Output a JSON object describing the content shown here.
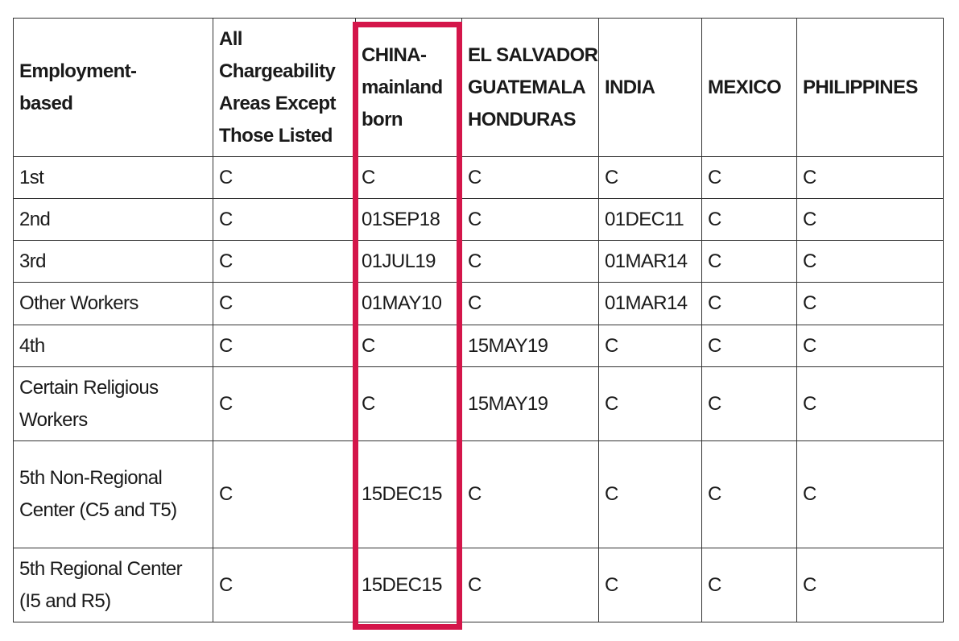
{
  "highlight_color": "#d4164a",
  "table": {
    "headers": [
      "Employment-based",
      "All Chargeability Areas Except Those Listed",
      "CHINA-mainland born",
      "EL SALVADOR GUATEMALA HONDURAS",
      "INDIA",
      "MEXICO",
      "PHILIPPINES"
    ],
    "rows": [
      [
        "1st",
        "C",
        "C",
        "C",
        "C",
        "C",
        "C"
      ],
      [
        "2nd",
        "C",
        "01SEP18",
        "C",
        "01DEC11",
        "C",
        "C"
      ],
      [
        "3rd",
        "C",
        "01JUL19",
        "C",
        "01MAR14",
        "C",
        "C"
      ],
      [
        "Other Workers",
        "C",
        "01MAY10",
        "C",
        "01MAR14",
        "C",
        "C"
      ],
      [
        "4th",
        "C",
        "C",
        "15MAY19",
        "C",
        "C",
        "C"
      ],
      [
        "Certain Religious Workers",
        "C",
        "C",
        "15MAY19",
        "C",
        "C",
        "C"
      ],
      [
        "5th Non-Regional Center (C5 and T5)",
        "C",
        "15DEC15",
        "C",
        "C",
        "C",
        "C"
      ],
      [
        "5th Regional Center (I5 and R5)",
        "C",
        "15DEC15",
        "C",
        "C",
        "C",
        "C"
      ]
    ]
  }
}
